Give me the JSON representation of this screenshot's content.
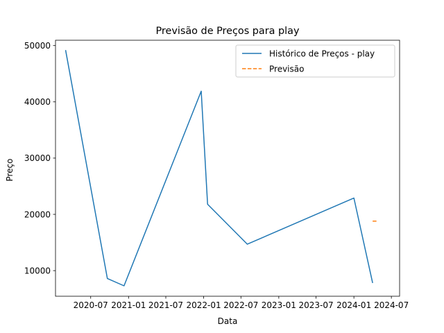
{
  "chart_data": {
    "type": "line",
    "title": "Previsão de Preços para play",
    "xlabel": "Data",
    "ylabel": "Preço",
    "x_axis_type": "date",
    "xlim": [
      "2020-01-12",
      "2024-08-10"
    ],
    "ylim": [
      5450,
      50950
    ],
    "x_ticks": [
      {
        "date": "2020-07-01",
        "label": "2020-07"
      },
      {
        "date": "2021-01-01",
        "label": "2021-01"
      },
      {
        "date": "2021-07-01",
        "label": "2021-07"
      },
      {
        "date": "2022-01-01",
        "label": "2022-01"
      },
      {
        "date": "2022-07-01",
        "label": "2022-07"
      },
      {
        "date": "2023-01-01",
        "label": "2023-01"
      },
      {
        "date": "2023-07-01",
        "label": "2023-07"
      },
      {
        "date": "2024-01-01",
        "label": "2024-01"
      },
      {
        "date": "2024-07-01",
        "label": "2024-07"
      }
    ],
    "y_ticks": [
      10000,
      20000,
      30000,
      40000,
      50000
    ],
    "grid": false,
    "legend_position": "top-right",
    "series": [
      {
        "name": "Histórico de Preços - play",
        "color": "#1f77b4",
        "style": "solid",
        "points": [
          {
            "x": "2020-03-01",
            "y": 49200
          },
          {
            "x": "2020-09-20",
            "y": 8600
          },
          {
            "x": "2020-12-10",
            "y": 7300
          },
          {
            "x": "2021-12-20",
            "y": 41900
          },
          {
            "x": "2022-01-20",
            "y": 21800
          },
          {
            "x": "2022-08-01",
            "y": 14700
          },
          {
            "x": "2024-01-01",
            "y": 22900
          },
          {
            "x": "2024-04-01",
            "y": 7800
          }
        ]
      },
      {
        "name": "Previsão",
        "color": "#ff7f0e",
        "style": "dashed",
        "points": [
          {
            "x": "2024-04-01",
            "y": 18800
          },
          {
            "x": "2024-04-25",
            "y": 18800
          }
        ]
      }
    ]
  }
}
